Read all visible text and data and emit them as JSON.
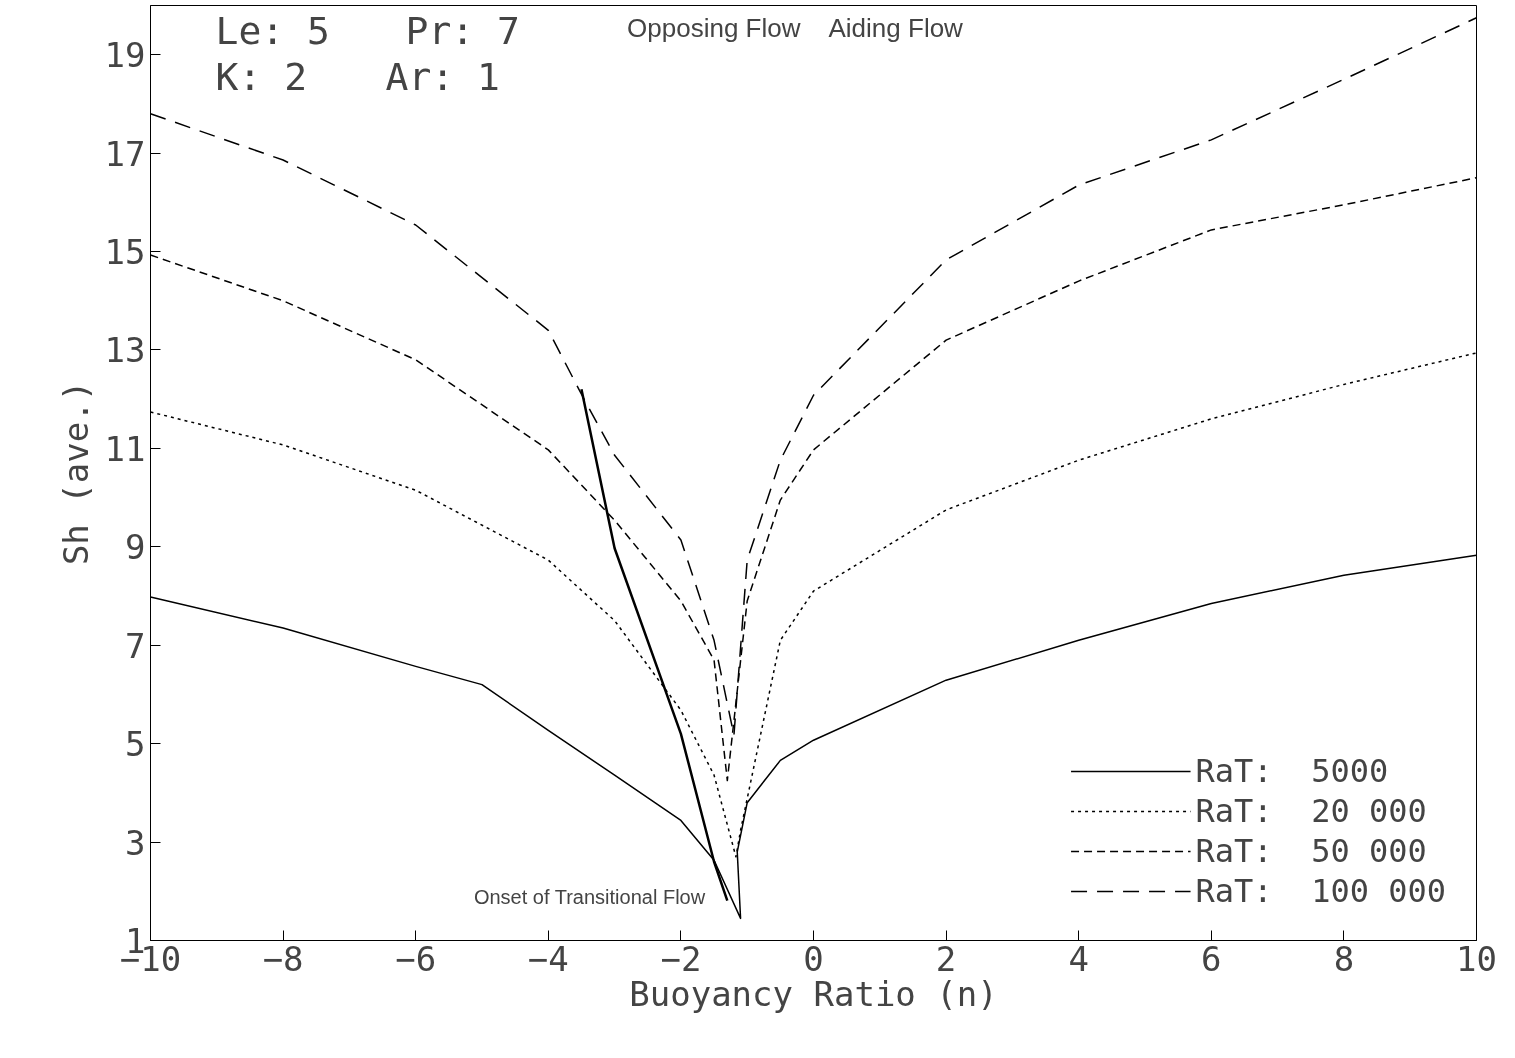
{
  "chart_data": {
    "type": "line",
    "xlabel": "Buoyancy Ratio (n)",
    "ylabel": "Sh (ave.)",
    "xlim": [
      -10,
      10
    ],
    "ylim": [
      1,
      20
    ],
    "xticks": [
      {
        "value": -10,
        "label": "−10"
      },
      {
        "value": -8,
        "label": "−8"
      },
      {
        "value": -6,
        "label": "−6"
      },
      {
        "value": -4,
        "label": "−4"
      },
      {
        "value": -2,
        "label": "−2"
      },
      0,
      2,
      4,
      6,
      8,
      10
    ],
    "yticks": [
      1,
      3,
      5,
      7,
      9,
      11,
      13,
      15,
      17,
      19
    ],
    "grid": false,
    "legend": "bottom right",
    "annotations": [
      "Le: 5",
      "Pr: 7",
      "K: 2",
      "Ar: 1",
      "Opposing Flow",
      "Aiding Flow",
      "Onset of Transitional Flow"
    ],
    "series": [
      {
        "name": "RaT:  5000",
        "color": "#000000",
        "line_style": "solid",
        "x": [
          -10,
          -8,
          -6,
          -5,
          -4,
          -3,
          -2,
          -1.5,
          -1.1,
          -1.15,
          -1,
          -0.5,
          0,
          2,
          4,
          6,
          8,
          10
        ],
        "values": [
          7.98,
          7.35,
          6.57,
          6.2,
          5.27,
          4.36,
          3.44,
          2.63,
          1.45,
          2.8,
          3.8,
          4.66,
          5.07,
          6.29,
          7.1,
          7.85,
          8.42,
          8.83
        ]
      },
      {
        "name": "RaT:  20 000",
        "color": "#000000",
        "line_style": "dotted",
        "x": [
          -10,
          -8,
          -6,
          -4,
          -3,
          -2,
          -1.5,
          -1.17,
          -1.1,
          -0.5,
          0,
          2,
          4,
          6,
          8,
          10
        ],
        "values": [
          11.74,
          11.07,
          10.15,
          8.73,
          7.5,
          5.68,
          4.36,
          2.7,
          3.24,
          7.1,
          8.1,
          9.75,
          10.76,
          11.6,
          12.3,
          12.94
        ]
      },
      {
        "name": "RaT:  50 000",
        "color": "#000000",
        "line_style": "dashed",
        "x": [
          -10,
          -8,
          -6,
          -4,
          -3,
          -2,
          -1.5,
          -1.3,
          -1,
          -0.5,
          0,
          2,
          4,
          6,
          8,
          10
        ],
        "values": [
          14.93,
          14.0,
          12.8,
          10.97,
          9.54,
          7.9,
          6.7,
          4.25,
          7.9,
          9.95,
          10.97,
          13.2,
          14.4,
          15.44,
          15.95,
          16.5
        ]
      },
      {
        "name": "RaT:  100 000",
        "color": "#000000",
        "line_style": "dashed",
        "x": [
          -10,
          -8,
          -6,
          -4,
          -3.5,
          -3,
          -2,
          -1.5,
          -1.2,
          -1,
          -0.5,
          0,
          2,
          4,
          6,
          8,
          10
        ],
        "values": [
          17.8,
          16.86,
          15.54,
          13.4,
          12.1,
          10.86,
          9.14,
          7.1,
          5.17,
          8.73,
          10.76,
          12.08,
          14.83,
          16.35,
          17.27,
          18.5,
          19.75
        ]
      },
      {
        "color": "#000000",
        "line_style": "solid",
        "x": [
          -3.5,
          -3,
          -2,
          -1.5,
          -1.3
        ],
        "values": [
          12.2,
          8.97,
          5.2,
          2.6,
          1.81
        ]
      }
    ]
  }
}
